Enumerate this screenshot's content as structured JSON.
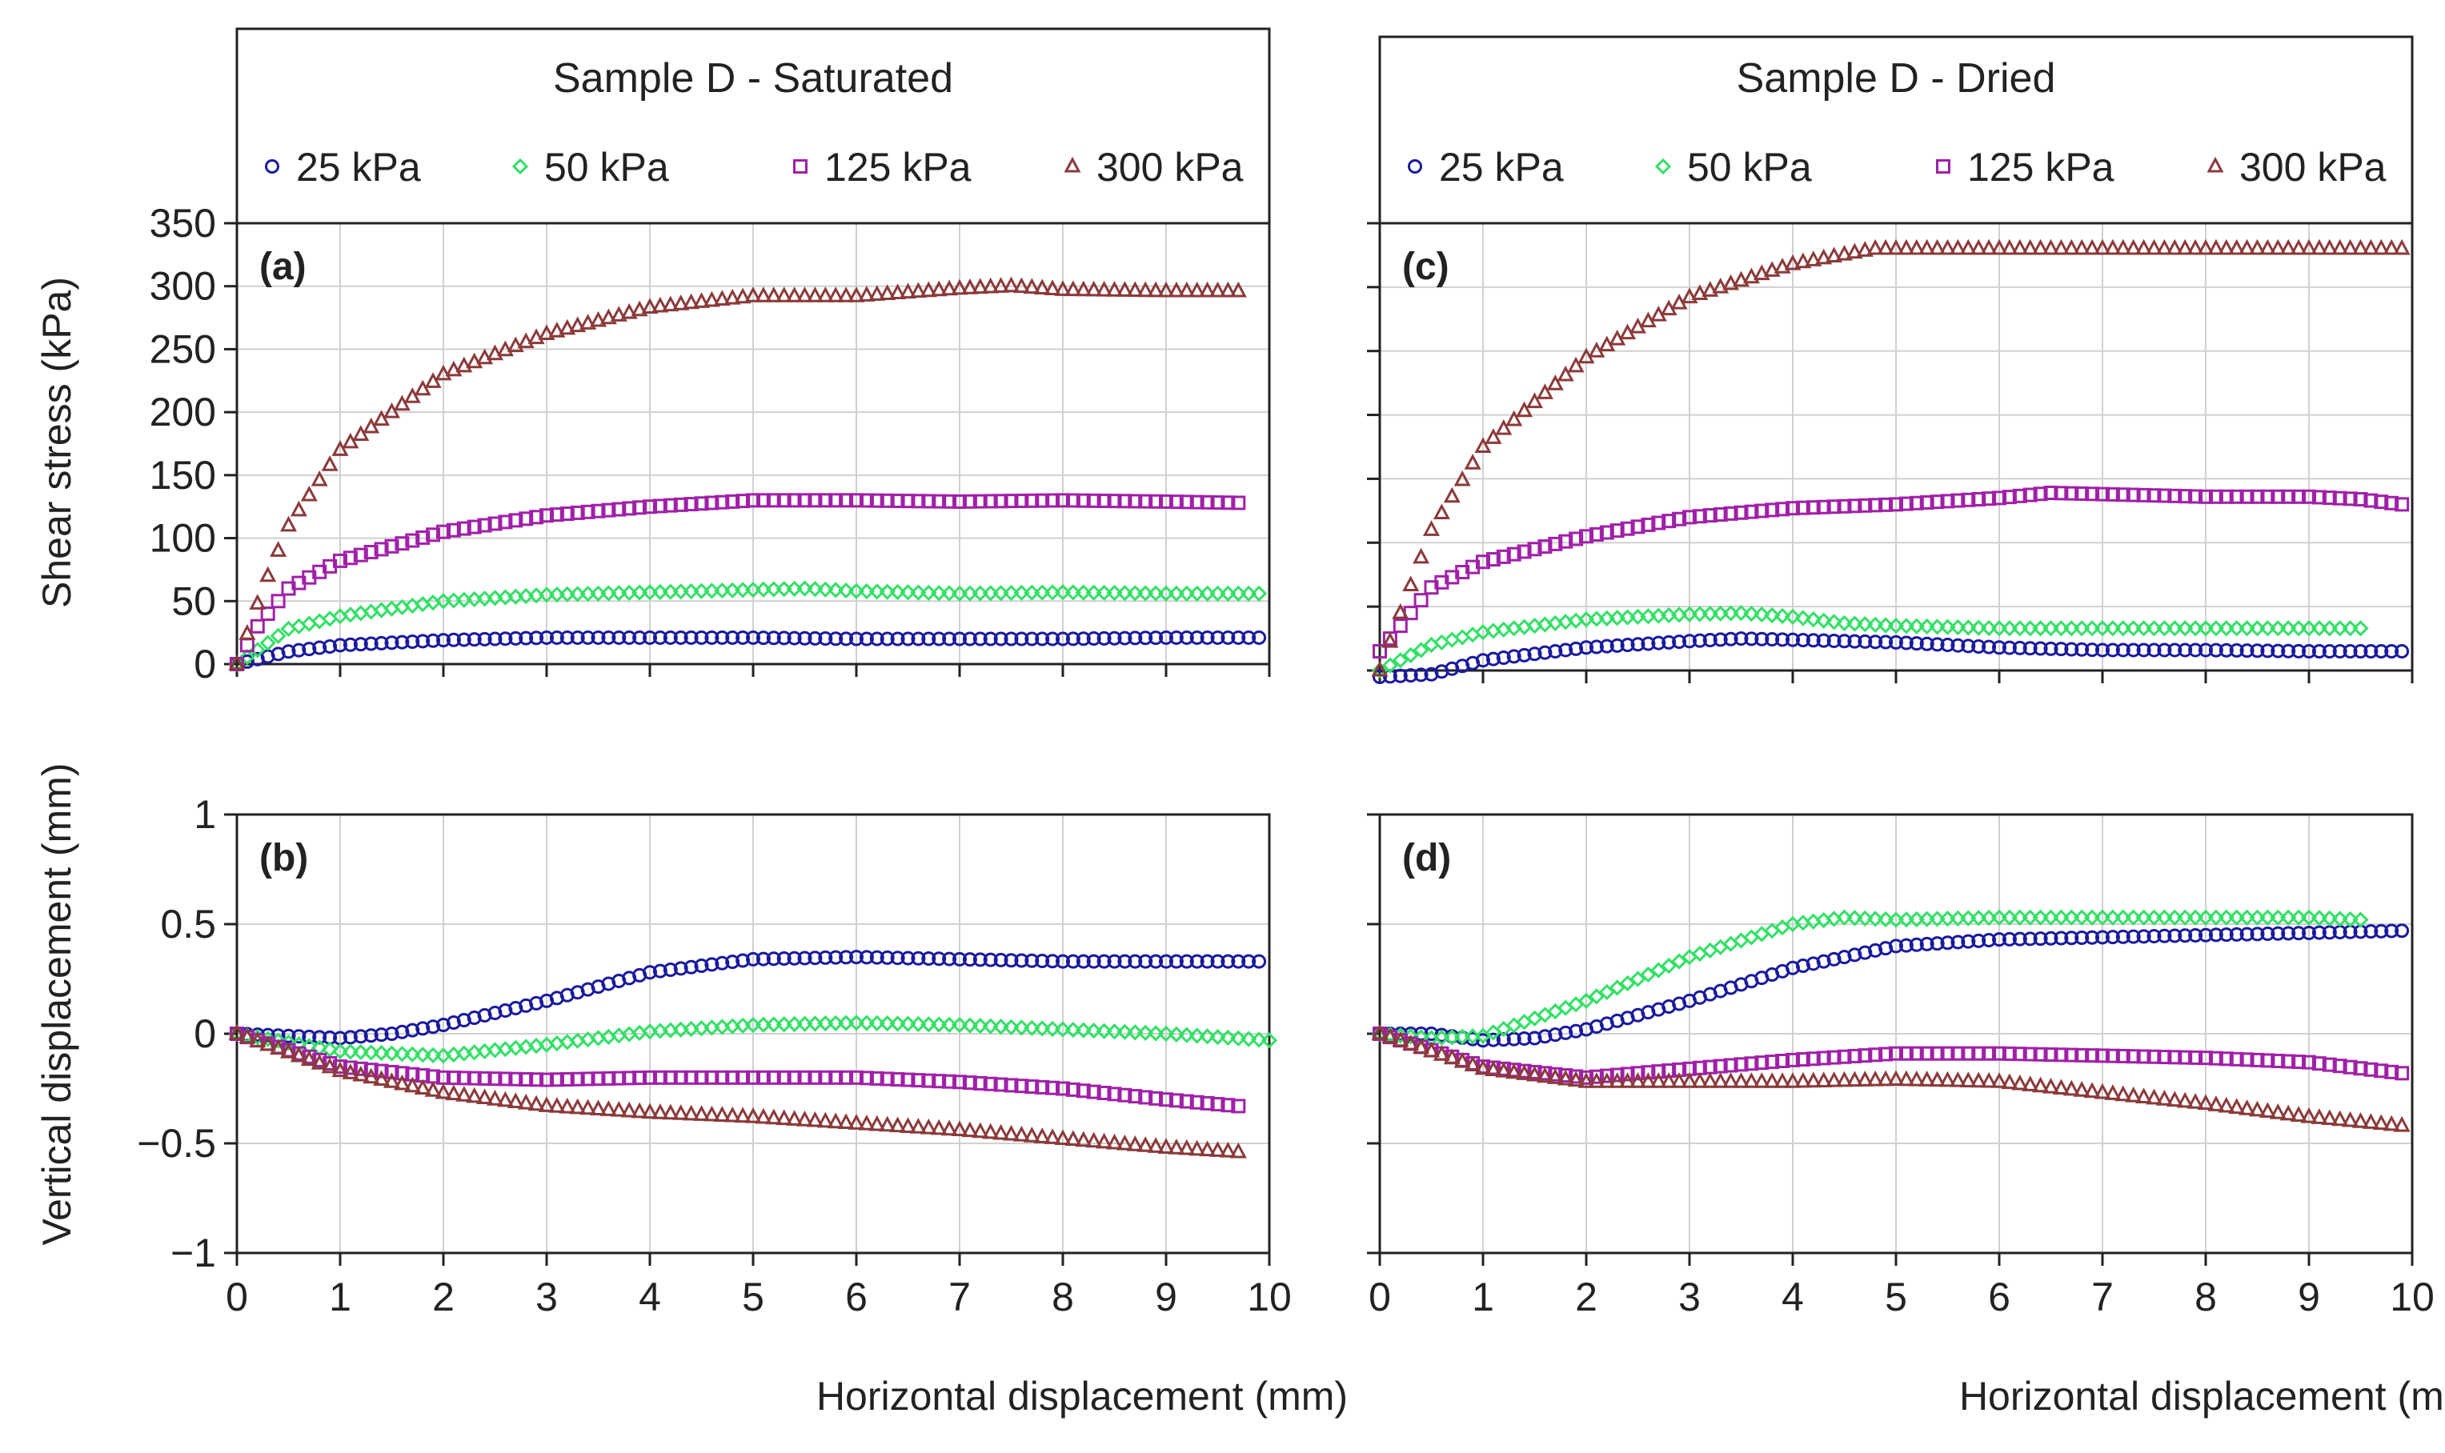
{
  "colors": {
    "25": "#1a1a9e",
    "50": "#33e066",
    "125": "#a020a8",
    "300": "#8b3a3a",
    "grid": "#d0d0d0",
    "axis": "#222222"
  },
  "legends": [
    {
      "title": "Sample D - Saturated",
      "entries": [
        {
          "label": "25 kPa",
          "marker": "circle",
          "color_key": "25"
        },
        {
          "label": "50 kPa",
          "marker": "diamond",
          "color_key": "50"
        },
        {
          "label": "125 kPa",
          "marker": "square",
          "color_key": "125"
        },
        {
          "label": "300 kPa",
          "marker": "triangle",
          "color_key": "300"
        }
      ]
    },
    {
      "title": "Sample D - Dried",
      "entries": [
        {
          "label": "25 kPa",
          "marker": "circle",
          "color_key": "25"
        },
        {
          "label": "50 kPa",
          "marker": "diamond",
          "color_key": "50"
        },
        {
          "label": "125 kPa",
          "marker": "square",
          "color_key": "125"
        },
        {
          "label": "300 kPa",
          "marker": "triangle",
          "color_key": "300"
        }
      ]
    }
  ],
  "axis_labels": {
    "shear": "Shear stress (kPa)",
    "vertical": "Vertical displacement (mm)",
    "horizontal": "Horizontal displacement (mm)"
  },
  "chart_data": [
    {
      "id": "a",
      "type": "scatter",
      "panel_label": "(a)",
      "xlabel": "",
      "ylabel": "Shear stress (kPa)",
      "xlim": [
        0,
        10
      ],
      "ylim": [
        0,
        350
      ],
      "xticks": [
        0,
        1,
        2,
        3,
        4,
        5,
        6,
        7,
        8,
        9,
        10
      ],
      "yticks": [
        0,
        50,
        100,
        150,
        200,
        250,
        300,
        350
      ],
      "x_tick_labels_visible": false,
      "y_tick_labels_visible": true,
      "grid": true,
      "series": [
        {
          "name": "25 kPa",
          "marker": "circle",
          "color_key": "25",
          "x_end": 9.9,
          "points": [
            [
              0,
              0
            ],
            [
              0.5,
              10
            ],
            [
              1,
              15
            ],
            [
              2,
              19
            ],
            [
              3,
              21
            ],
            [
              4,
              21
            ],
            [
              5,
              21
            ],
            [
              6,
              20
            ],
            [
              7,
              20
            ],
            [
              8,
              20
            ],
            [
              9,
              21
            ],
            [
              9.9,
              21
            ]
          ]
        },
        {
          "name": "50 kPa",
          "marker": "diamond",
          "color_key": "50",
          "x_end": 9.9,
          "points": [
            [
              0,
              0
            ],
            [
              0.5,
              28
            ],
            [
              1,
              38
            ],
            [
              2,
              50
            ],
            [
              3,
              55
            ],
            [
              4,
              57
            ],
            [
              5,
              59
            ],
            [
              5.5,
              60
            ],
            [
              6,
              58
            ],
            [
              7,
              56
            ],
            [
              8,
              57
            ],
            [
              9,
              56
            ],
            [
              9.9,
              56
            ]
          ]
        },
        {
          "name": "125 kPa",
          "marker": "square",
          "color_key": "125",
          "x_end": 9.7,
          "points": [
            [
              0,
              0
            ],
            [
              0.2,
              30
            ],
            [
              0.5,
              60
            ],
            [
              1,
              82
            ],
            [
              2,
              105
            ],
            [
              3,
              118
            ],
            [
              4,
              125
            ],
            [
              5,
              130
            ],
            [
              6,
              130
            ],
            [
              7,
              129
            ],
            [
              8,
              130
            ],
            [
              9,
              129
            ],
            [
              9.7,
              128
            ]
          ]
        },
        {
          "name": "300 kPa",
          "marker": "triangle",
          "color_key": "300",
          "x_end": 9.7,
          "points": [
            [
              0,
              0
            ],
            [
              0.25,
              60
            ],
            [
              0.5,
              110
            ],
            [
              1,
              170
            ],
            [
              2,
              230
            ],
            [
              3,
              262
            ],
            [
              4,
              283
            ],
            [
              5,
              292
            ],
            [
              6,
              292
            ],
            [
              7,
              298
            ],
            [
              7.5,
              300
            ],
            [
              8,
              297
            ],
            [
              9,
              296
            ],
            [
              9.7,
              296
            ]
          ]
        }
      ]
    },
    {
      "id": "b",
      "type": "scatter",
      "panel_label": "(b)",
      "xlabel": "Horizontal displacement (mm)",
      "ylabel": "Vertical displacement (mm)",
      "xlim": [
        0,
        10
      ],
      "ylim": [
        -1,
        1
      ],
      "xticks": [
        0,
        1,
        2,
        3,
        4,
        5,
        6,
        7,
        8,
        9,
        10
      ],
      "yticks": [
        -1,
        -0.5,
        0,
        0.5,
        1
      ],
      "ytick_labels": [
        "−1",
        "−0.5",
        "0",
        "0.5",
        "1"
      ],
      "x_tick_labels_visible": true,
      "y_tick_labels_visible": true,
      "grid": true,
      "series": [
        {
          "name": "25 kPa",
          "marker": "circle",
          "color_key": "25",
          "x_end": 9.9,
          "points": [
            [
              0,
              0
            ],
            [
              1,
              -0.02
            ],
            [
              1.5,
              0
            ],
            [
              2,
              0.04
            ],
            [
              3,
              0.15
            ],
            [
              4,
              0.28
            ],
            [
              5,
              0.34
            ],
            [
              6,
              0.35
            ],
            [
              7,
              0.34
            ],
            [
              8,
              0.33
            ],
            [
              9,
              0.33
            ],
            [
              9.9,
              0.33
            ]
          ]
        },
        {
          "name": "50 kPa",
          "marker": "diamond",
          "color_key": "50",
          "x_end": 10,
          "points": [
            [
              0,
              0
            ],
            [
              1,
              -0.08
            ],
            [
              2,
              -0.1
            ],
            [
              3,
              -0.05
            ],
            [
              4,
              0.01
            ],
            [
              5,
              0.04
            ],
            [
              6,
              0.05
            ],
            [
              7,
              0.04
            ],
            [
              8,
              0.02
            ],
            [
              9,
              0
            ],
            [
              10,
              -0.03
            ]
          ]
        },
        {
          "name": "125 kPa",
          "marker": "square",
          "color_key": "125",
          "x_end": 9.7,
          "points": [
            [
              0,
              0
            ],
            [
              1,
              -0.15
            ],
            [
              2,
              -0.2
            ],
            [
              3,
              -0.21
            ],
            [
              4,
              -0.2
            ],
            [
              5,
              -0.2
            ],
            [
              6,
              -0.2
            ],
            [
              7,
              -0.22
            ],
            [
              8,
              -0.25
            ],
            [
              9,
              -0.3
            ],
            [
              9.7,
              -0.33
            ]
          ]
        },
        {
          "name": "300 kPa",
          "marker": "triangle",
          "color_key": "300",
          "x_end": 9.7,
          "points": [
            [
              0,
              0
            ],
            [
              1,
              -0.17
            ],
            [
              2,
              -0.27
            ],
            [
              3,
              -0.33
            ],
            [
              4,
              -0.36
            ],
            [
              5,
              -0.38
            ],
            [
              6,
              -0.41
            ],
            [
              7,
              -0.44
            ],
            [
              8,
              -0.48
            ],
            [
              9,
              -0.52
            ],
            [
              9.7,
              -0.54
            ]
          ]
        }
      ]
    },
    {
      "id": "c",
      "type": "scatter",
      "panel_label": "(c)",
      "xlabel": "",
      "ylabel": "",
      "xlim": [
        0,
        10
      ],
      "ylim": [
        0,
        350
      ],
      "xticks": [
        0,
        1,
        2,
        3,
        4,
        5,
        6,
        7,
        8,
        9,
        10
      ],
      "yticks": [
        0,
        50,
        100,
        150,
        200,
        250,
        300,
        350
      ],
      "x_tick_labels_visible": false,
      "y_tick_labels_visible": false,
      "grid": true,
      "series": [
        {
          "name": "25 kPa",
          "marker": "circle",
          "color_key": "25",
          "x_end": 9.9,
          "points": [
            [
              0,
              -5
            ],
            [
              0.5,
              -3
            ],
            [
              1,
              8
            ],
            [
              2,
              18
            ],
            [
              3,
              23
            ],
            [
              3.5,
              25
            ],
            [
              4,
              24
            ],
            [
              5,
              22
            ],
            [
              6,
              18
            ],
            [
              7,
              16
            ],
            [
              8,
              16
            ],
            [
              9,
              15
            ],
            [
              9.9,
              15
            ]
          ]
        },
        {
          "name": "50 kPa",
          "marker": "diamond",
          "color_key": "50",
          "x_end": 9.5,
          "points": [
            [
              0,
              0
            ],
            [
              0.5,
              20
            ],
            [
              1,
              30
            ],
            [
              2,
              40
            ],
            [
              3,
              44
            ],
            [
              3.5,
              45
            ],
            [
              4,
              42
            ],
            [
              4.5,
              37
            ],
            [
              5,
              35
            ],
            [
              6,
              33
            ],
            [
              7,
              33
            ],
            [
              8,
              33
            ],
            [
              9,
              33
            ],
            [
              9.5,
              33
            ]
          ]
        },
        {
          "name": "125 kPa",
          "marker": "square",
          "color_key": "125",
          "x_end": 9.9,
          "points": [
            [
              0,
              15
            ],
            [
              0.3,
              45
            ],
            [
              0.5,
              65
            ],
            [
              1,
              85
            ],
            [
              2,
              105
            ],
            [
              3,
              120
            ],
            [
              4,
              127
            ],
            [
              5,
              130
            ],
            [
              6,
              135
            ],
            [
              6.5,
              139
            ],
            [
              7,
              138
            ],
            [
              8,
              136
            ],
            [
              9,
              136
            ],
            [
              9.5,
              134
            ],
            [
              9.9,
              130
            ]
          ]
        },
        {
          "name": "300 kPa",
          "marker": "triangle",
          "color_key": "300",
          "x_end": 9.9,
          "points": [
            [
              0,
              0
            ],
            [
              0.2,
              45
            ],
            [
              0.5,
              110
            ],
            [
              1,
              175
            ],
            [
              2,
              245
            ],
            [
              3,
              292
            ],
            [
              4,
              318
            ],
            [
              4.8,
              330
            ],
            [
              5,
              330
            ],
            [
              6,
              330
            ],
            [
              7,
              330
            ],
            [
              8,
              330
            ],
            [
              9,
              330
            ],
            [
              9.9,
              330
            ]
          ]
        }
      ]
    },
    {
      "id": "d",
      "type": "scatter",
      "panel_label": "(d)",
      "xlabel": "Horizontal displacement (mm)",
      "ylabel": "",
      "xlim": [
        0,
        10
      ],
      "ylim": [
        -1,
        1
      ],
      "xticks": [
        0,
        1,
        2,
        3,
        4,
        5,
        6,
        7,
        8,
        9,
        10
      ],
      "yticks": [
        -1,
        -0.5,
        0,
        0.5,
        1
      ],
      "x_tick_labels_visible": true,
      "y_tick_labels_visible": false,
      "grid": true,
      "series": [
        {
          "name": "25 kPa",
          "marker": "circle",
          "color_key": "25",
          "x_end": 9.9,
          "points": [
            [
              0,
              0
            ],
            [
              0.5,
              0
            ],
            [
              1,
              -0.03
            ],
            [
              1.5,
              -0.02
            ],
            [
              2,
              0.02
            ],
            [
              3,
              0.15
            ],
            [
              4,
              0.3
            ],
            [
              5,
              0.4
            ],
            [
              6,
              0.43
            ],
            [
              7,
              0.44
            ],
            [
              8,
              0.45
            ],
            [
              9,
              0.46
            ],
            [
              9.9,
              0.47
            ]
          ]
        },
        {
          "name": "50 kPa",
          "marker": "diamond",
          "color_key": "50",
          "x_end": 9.5,
          "points": [
            [
              0,
              0
            ],
            [
              0.5,
              -0.02
            ],
            [
              1,
              -0.01
            ],
            [
              2,
              0.15
            ],
            [
              3,
              0.35
            ],
            [
              4,
              0.5
            ],
            [
              4.5,
              0.53
            ],
            [
              5,
              0.52
            ],
            [
              6,
              0.53
            ],
            [
              7,
              0.53
            ],
            [
              8,
              0.53
            ],
            [
              9,
              0.53
            ],
            [
              9.5,
              0.52
            ]
          ]
        },
        {
          "name": "125 kPa",
          "marker": "square",
          "color_key": "125",
          "x_end": 9.9,
          "points": [
            [
              0,
              0
            ],
            [
              1,
              -0.15
            ],
            [
              2,
              -0.2
            ],
            [
              3,
              -0.16
            ],
            [
              4,
              -0.12
            ],
            [
              5,
              -0.09
            ],
            [
              6,
              -0.09
            ],
            [
              7,
              -0.1
            ],
            [
              8,
              -0.11
            ],
            [
              9,
              -0.13
            ],
            [
              9.9,
              -0.18
            ]
          ]
        },
        {
          "name": "300 kPa",
          "marker": "triangle",
          "color_key": "300",
          "x_end": 9.9,
          "points": [
            [
              0,
              0
            ],
            [
              1,
              -0.16
            ],
            [
              2,
              -0.22
            ],
            [
              3,
              -0.22
            ],
            [
              4,
              -0.22
            ],
            [
              5,
              -0.21
            ],
            [
              6,
              -0.22
            ],
            [
              7,
              -0.27
            ],
            [
              8,
              -0.32
            ],
            [
              9,
              -0.38
            ],
            [
              9.9,
              -0.42
            ]
          ]
        }
      ]
    }
  ]
}
